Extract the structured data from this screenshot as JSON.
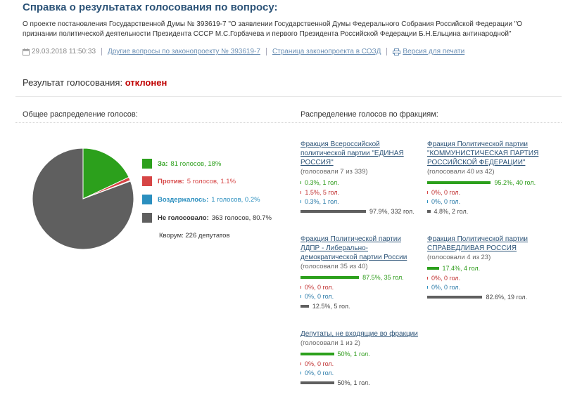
{
  "header": {
    "title": "Справка о результатах голосования по вопросу:",
    "about": "О проекте постановления Государственной Думы № 393619-7 \"О заявлении Государственной Думы Федерального Собрания Российской Федерации \"О признании политической деятельности Президента СССР М.С.Горбачева и первого Президента Российской Федерации Б.Н.Ельцина антинародной\"",
    "date": "29.03.2018 11:50:33",
    "link_other": "Другие вопросы по законопроекту № 393619-7",
    "link_sozd": "Страница законопроекта в СОЗД",
    "link_print": "Версия для печати"
  },
  "result": {
    "label": "Результат голосования:",
    "verdict": "отклонен"
  },
  "sections": {
    "overall": "Общее распределение голосов:",
    "factions": "Распределение голосов по фракциям:"
  },
  "colors": {
    "for": "#2ca01c",
    "against": "#d64545",
    "abstain": "#2b8fbf",
    "none": "#5f5f5f"
  },
  "legend": [
    {
      "key": "for",
      "label": "За:",
      "value": "81 голосов, 18%"
    },
    {
      "key": "against",
      "label": "Против:",
      "value": "5 голосов, 1.1%"
    },
    {
      "key": "abstain",
      "label": "Воздержалось:",
      "value": "1 голосов, 0.2%"
    },
    {
      "key": "none",
      "label": "Не голосовало:",
      "value": "363 голосов, 80.7%"
    }
  ],
  "quorum": "Кворум: 226 депутатов",
  "chart_data": {
    "type": "pie",
    "slices": [
      {
        "key": "for",
        "name": "За",
        "value": 81,
        "percent": 18
      },
      {
        "key": "against",
        "name": "Против",
        "value": 5,
        "percent": 1.1
      },
      {
        "key": "abstain",
        "name": "Воздержалось",
        "value": 1,
        "percent": 0.2
      },
      {
        "key": "none",
        "name": "Не голосовало",
        "value": 363,
        "percent": 80.7
      }
    ]
  },
  "factions": [
    {
      "name": "Фракция Всероссийской политической партии \"ЕДИНАЯ РОССИЯ\"",
      "voted": "(голосовали 7 из 339)",
      "rows": [
        {
          "key": "for",
          "pct": 0.3,
          "text": "0.3%, 1 гол."
        },
        {
          "key": "against",
          "pct": 1.5,
          "text": "1.5%, 5 гол."
        },
        {
          "key": "abstain",
          "pct": 0.3,
          "text": "0.3%, 1 гол."
        },
        {
          "key": "none",
          "pct": 97.9,
          "text": "97.9%, 332 гол."
        }
      ]
    },
    {
      "name": "Фракция Политической партии \"КОММУНИСТИЧЕСКАЯ ПАРТИЯ РОССИЙСКОЙ ФЕДЕРАЦИИ\"",
      "voted": "(голосовали 40 из 42)",
      "rows": [
        {
          "key": "for",
          "pct": 95.2,
          "text": "95.2%, 40 гол."
        },
        {
          "key": "against",
          "pct": 0,
          "text": "0%, 0 гол."
        },
        {
          "key": "abstain",
          "pct": 0,
          "text": "0%, 0 гол."
        },
        {
          "key": "none",
          "pct": 4.8,
          "text": "4.8%, 2 гол."
        }
      ]
    },
    {
      "name": "Фракция Политической партии ЛДПР - Либерально-демократической партии России",
      "voted": "(голосовали 35 из 40)",
      "rows": [
        {
          "key": "for",
          "pct": 87.5,
          "text": "87.5%, 35 гол."
        },
        {
          "key": "against",
          "pct": 0,
          "text": "0%, 0 гол."
        },
        {
          "key": "abstain",
          "pct": 0,
          "text": "0%, 0 гол."
        },
        {
          "key": "none",
          "pct": 12.5,
          "text": "12.5%, 5 гол."
        }
      ]
    },
    {
      "name": "Фракция Политической партии СПРАВЕДЛИВАЯ РОССИЯ",
      "voted": "(голосовали 4 из 23)",
      "rows": [
        {
          "key": "for",
          "pct": 17.4,
          "text": "17.4%, 4 гол."
        },
        {
          "key": "against",
          "pct": 0,
          "text": "0%, 0 гол."
        },
        {
          "key": "abstain",
          "pct": 0,
          "text": "0%, 0 гол."
        },
        {
          "key": "none",
          "pct": 82.6,
          "text": "82.6%, 19 гол."
        }
      ]
    },
    {
      "name": "Депутаты, не входящие во фракции",
      "voted": "(голосовали 1 из 2)",
      "rows": [
        {
          "key": "for",
          "pct": 50,
          "text": "50%, 1 гол."
        },
        {
          "key": "against",
          "pct": 0,
          "text": "0%, 0 гол."
        },
        {
          "key": "abstain",
          "pct": 0,
          "text": "0%, 0 гол."
        },
        {
          "key": "none",
          "pct": 50,
          "text": "50%, 1 гол."
        }
      ]
    }
  ]
}
